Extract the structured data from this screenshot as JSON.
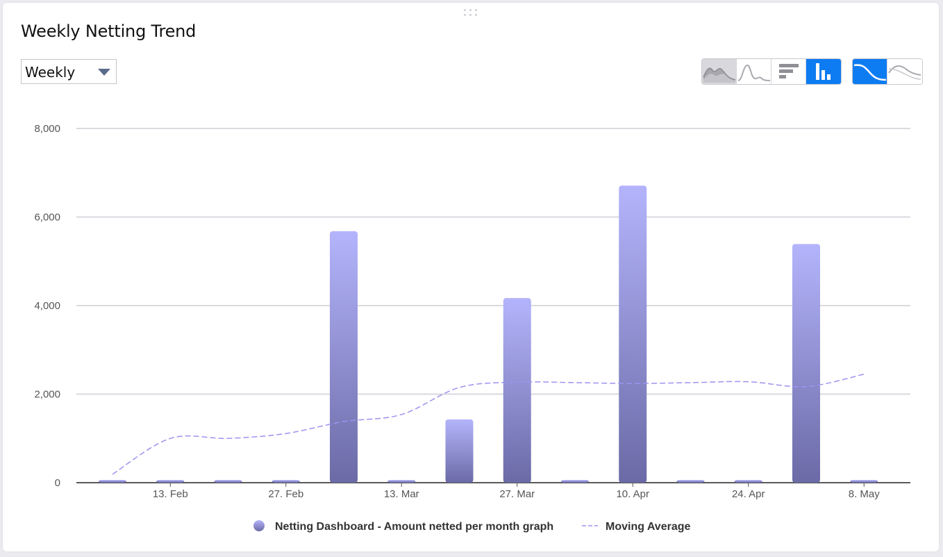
{
  "widget": {
    "title": "Weekly Netting Trend",
    "period_select": {
      "value": "Weekly"
    }
  },
  "toolbar": {
    "chart_type_buttons": [
      {
        "name": "area-chart-button",
        "icon": "area-chart-icon",
        "state": "hover"
      },
      {
        "name": "line-chart-button",
        "icon": "line-chart-icon",
        "state": "normal"
      },
      {
        "name": "horizontal-bar-chart-button",
        "icon": "horizontal-bar-icon",
        "state": "normal"
      },
      {
        "name": "column-chart-button",
        "icon": "column-chart-icon",
        "state": "active"
      }
    ],
    "smoothing_buttons": [
      {
        "name": "moving-average-button",
        "icon": "smooth-curve-icon",
        "state": "active"
      },
      {
        "name": "raw-trend-button",
        "icon": "wavy-curve-icon",
        "state": "normal"
      }
    ]
  },
  "colors": {
    "accent": "#0d7cf2",
    "bar_top": "#b4b4fc",
    "bar_bottom": "#6b6aa6",
    "moving_average": "#9b94ef",
    "grid": "#d9d9df"
  },
  "chart_data": {
    "type": "bar",
    "x_tick_labels": [
      "13. Feb",
      "27. Feb",
      "13. Mar",
      "27. Mar",
      "10. Apr",
      "24. Apr",
      "8. May"
    ],
    "x": [
      "2023-02-06",
      "2023-02-13",
      "2023-02-20",
      "2023-02-27",
      "2023-03-06",
      "2023-03-13",
      "2023-03-20",
      "2023-03-27",
      "2023-04-03",
      "2023-04-10",
      "2023-04-17",
      "2023-04-24",
      "2023-05-01",
      "2023-05-08"
    ],
    "ylim": [
      0,
      8000
    ],
    "y_ticks": [
      0,
      2000,
      4000,
      6000,
      8000
    ],
    "y_tick_labels": [
      "0",
      "2,000",
      "4,000",
      "6,000",
      "8,000"
    ],
    "grid": true,
    "legend_position": "bottom-center",
    "series": [
      {
        "name": "Netting Dashboard - Amount netted per month graph",
        "type": "bar",
        "values": [
          60,
          60,
          60,
          60,
          5680,
          60,
          1430,
          4170,
          60,
          6710,
          60,
          60,
          5390,
          60
        ]
      },
      {
        "name": "Moving Average",
        "type": "line",
        "style": "dashed",
        "values": [
          190,
          1000,
          1000,
          1110,
          1380,
          1540,
          2150,
          2270,
          2260,
          2240,
          2260,
          2280,
          2170,
          2450
        ]
      }
    ]
  }
}
